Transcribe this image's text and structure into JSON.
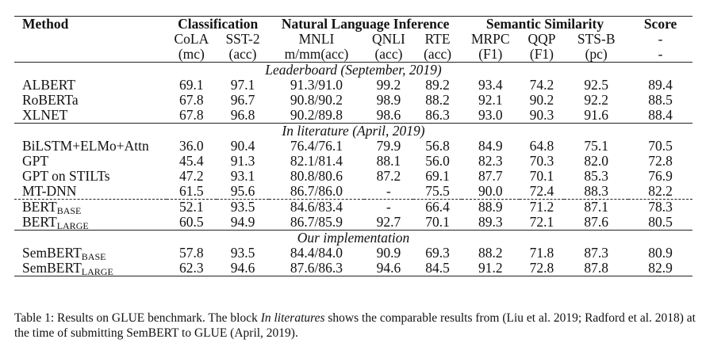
{
  "table": {
    "group_headers": {
      "method": "Method",
      "classification": "Classification",
      "nli": "Natural Language Inference",
      "similarity": "Semantic Similarity",
      "score": "Score"
    },
    "columns": [
      "CoLA",
      "SST-2",
      "MNLI",
      "QNLI",
      "RTE",
      "MRPC",
      "QQP",
      "STS-B",
      "-"
    ],
    "metrics": [
      "(mc)",
      "(acc)",
      "m/mm(acc)",
      "(acc)",
      "(acc)",
      "(F1)",
      "(F1)",
      "(pc)",
      "-"
    ],
    "sections": [
      {
        "title": "Leaderboard (September, 2019)",
        "rows": [
          {
            "method": "ALBERT",
            "sub": "",
            "values": [
              "69.1",
              "97.1",
              "91.3/91.0",
              "99.2",
              "89.2",
              "93.4",
              "74.2",
              "92.5",
              "89.4"
            ]
          },
          {
            "method": "RoBERTa",
            "sub": "",
            "values": [
              "67.8",
              "96.7",
              "90.8/90.2",
              "98.9",
              "88.2",
              "92.1",
              "90.2",
              "92.2",
              "88.5"
            ]
          },
          {
            "method": "XLNET",
            "sub": "",
            "values": [
              "67.8",
              "96.8",
              "90.2/89.8",
              "98.6",
              "86.3",
              "93.0",
              "90.3",
              "91.6",
              "88.4"
            ]
          }
        ]
      },
      {
        "title": "In literature (April, 2019)",
        "rows": [
          {
            "method": "BiLSTM+ELMo+Attn",
            "sub": "",
            "values": [
              "36.0",
              "90.4",
              "76.4/76.1",
              "79.9",
              "56.8",
              "84.9",
              "64.8",
              "75.1",
              "70.5"
            ]
          },
          {
            "method": "GPT",
            "sub": "",
            "values": [
              "45.4",
              "91.3",
              "82.1/81.4",
              "88.1",
              "56.0",
              "82.3",
              "70.3",
              "82.0",
              "72.8"
            ]
          },
          {
            "method": "GPT on STILTs",
            "sub": "",
            "values": [
              "47.2",
              "93.1",
              "80.8/80.6",
              "87.2",
              "69.1",
              "87.7",
              "70.1",
              "85.3",
              "76.9"
            ]
          },
          {
            "method": "MT-DNN",
            "sub": "",
            "values": [
              "61.5",
              "95.6",
              "86.7/86.0",
              "-",
              "75.5",
              "90.0",
              "72.4",
              "88.3",
              "82.2"
            ]
          },
          {
            "method": "BERT",
            "sub": "BASE",
            "values": [
              "52.1",
              "93.5",
              "84.6/83.4",
              "-",
              "66.4",
              "88.9",
              "71.2",
              "87.1",
              "78.3"
            ]
          },
          {
            "method": "BERT",
            "sub": "LARGE",
            "values": [
              "60.5",
              "94.9",
              "86.7/85.9",
              "92.7",
              "70.1",
              "89.3",
              "72.1",
              "87.6",
              "80.5"
            ]
          }
        ]
      },
      {
        "title": "Our implementation",
        "rows": [
          {
            "method": "SemBERT",
            "sub": "BASE",
            "values": [
              "57.8",
              "93.5",
              "84.4/84.0",
              "90.9",
              "69.3",
              "88.2",
              "71.8",
              "87.3",
              "80.9"
            ]
          },
          {
            "method": "SemBERT",
            "sub": "LARGE",
            "values": [
              "62.3",
              "94.6",
              "87.6/86.3",
              "94.6",
              "84.5",
              "91.2",
              "72.8",
              "87.8",
              "82.9"
            ]
          }
        ]
      }
    ]
  },
  "caption": {
    "prefix": "Table 1: Results on GLUE benchmark. The block ",
    "italic": "In literatures",
    "suffix": " shows the comparable results from (Liu et al. 2019; Radford et al. 2018) at the time of submitting SemBERT to GLUE (April, 2019)."
  }
}
